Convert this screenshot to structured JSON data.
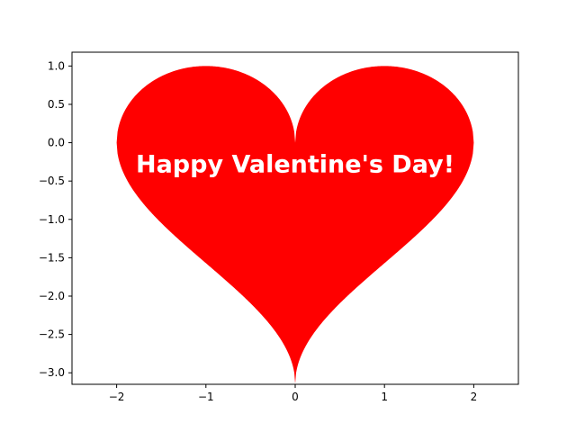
{
  "chart_data": {
    "type": "area",
    "title": "",
    "xlabel": "",
    "ylabel": "",
    "xlim": [
      -2.5,
      2.5
    ],
    "ylim": [
      -3.15,
      1.18
    ],
    "x_ticks": [
      -2,
      -1,
      0,
      1,
      2
    ],
    "x_tick_labels": [
      "−2",
      "−1",
      "0",
      "1",
      "2"
    ],
    "y_ticks": [
      1.0,
      0.5,
      0.0,
      -0.5,
      -1.0,
      -1.5,
      -2.0,
      -2.5,
      -3.0
    ],
    "y_tick_labels": [
      "1.0",
      "0.5",
      "0.0",
      "−0.5",
      "−1.0",
      "−1.5",
      "−2.0",
      "−2.5",
      "−3.0"
    ],
    "grid": false,
    "series": [
      {
        "shape": "heart",
        "fill_color": "#ff0000",
        "upper_curve": "y = sqrt(1 - (|x| - 1)^2)",
        "lower_curve": "y = arccos(1 - |x|) - pi",
        "x_range": [
          -2,
          2
        ]
      }
    ],
    "annotation": {
      "text": "Happy Valentine's Day!",
      "x": 0,
      "y": -0.3,
      "color": "#ffffff"
    }
  }
}
